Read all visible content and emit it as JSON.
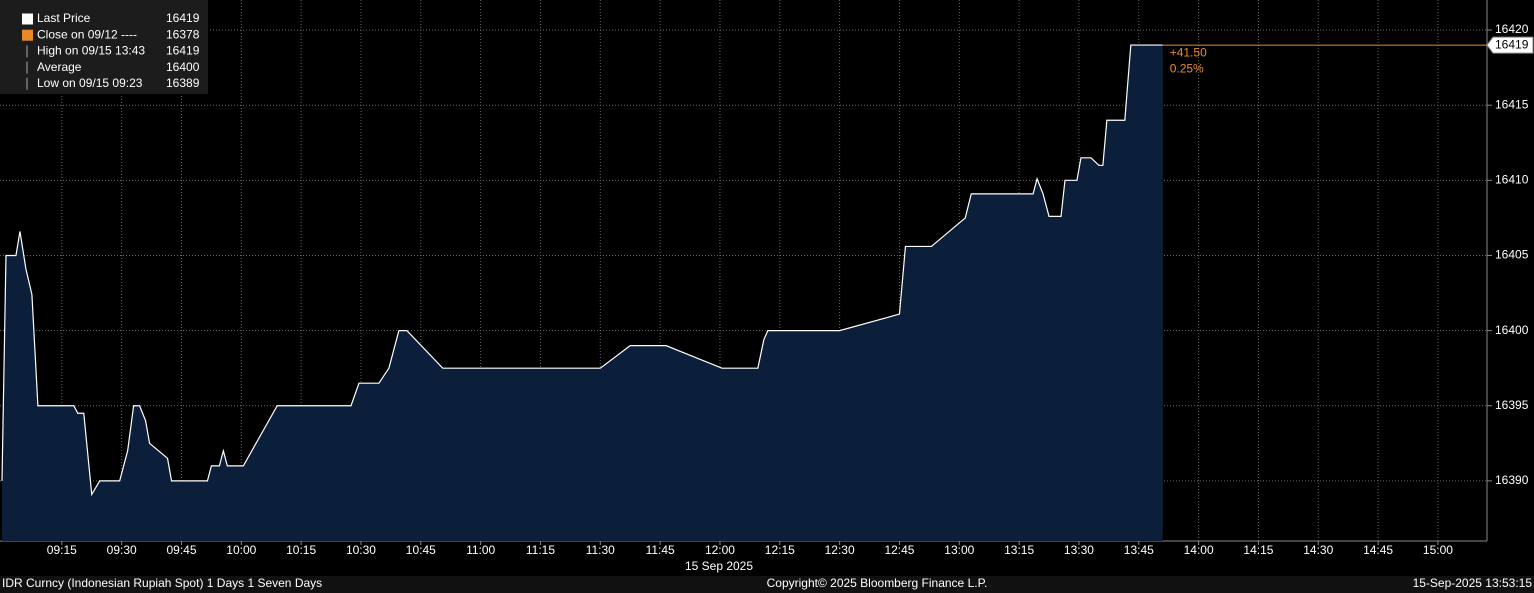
{
  "chart_data": {
    "type": "area",
    "x": [
      540,
      541,
      543.5,
      544.5,
      546,
      547.5,
      548.5,
      549,
      558,
      559,
      560.5,
      562.5,
      564.5,
      569.5,
      571.5,
      573,
      574.5,
      576,
      577,
      581.5,
      582.5,
      591.5,
      592.5,
      594.5,
      595.5,
      596.5,
      600.5,
      609,
      627.5,
      629.5,
      634.5,
      637,
      639.5,
      641.5,
      650.5,
      690,
      697.5,
      706.5,
      720.5,
      729.5,
      731,
      732,
      750,
      765,
      766.5,
      773,
      781.5,
      783,
      798.5,
      799.5,
      801,
      802.5,
      805.5,
      806.5,
      809.5,
      810.5,
      813,
      815,
      816,
      817,
      821.5,
      823,
      831
    ],
    "values": [
      16390,
      16405,
      16405,
      16406.6,
      16404.1,
      16402.4,
      16397.5,
      16395,
      16395,
      16394.5,
      16394.5,
      16389.1,
      16390,
      16390,
      16392,
      16395,
      16395,
      16394,
      16392.5,
      16391.5,
      16390,
      16390,
      16391,
      16391,
      16392,
      16391,
      16391,
      16395,
      16395,
      16396.5,
      16396.5,
      16397.5,
      16400,
      16400,
      16397.5,
      16397.5,
      16399,
      16399,
      16397.5,
      16397.5,
      16399.4,
      16400,
      16400,
      16401.1,
      16405.6,
      16405.6,
      16407.5,
      16409.1,
      16409.1,
      16410.1,
      16409.1,
      16407.6,
      16407.6,
      16410,
      16410,
      16411.5,
      16411.5,
      16411,
      16411,
      16414,
      16414,
      16419,
      16419
    ],
    "line_color": "#ffffff",
    "fill_color": "#0b1f3a",
    "last_color": "#e8892b",
    "xlim": [
      539.5,
      912.3
    ],
    "ylim": [
      16386,
      16422
    ],
    "xticks": [
      {
        "value": 555,
        "label": "09:15"
      },
      {
        "value": 570,
        "label": "09:30"
      },
      {
        "value": 585,
        "label": "09:45"
      },
      {
        "value": 600,
        "label": "10:00"
      },
      {
        "value": 615,
        "label": "10:15"
      },
      {
        "value": 630,
        "label": "10:30"
      },
      {
        "value": 645,
        "label": "10:45"
      },
      {
        "value": 660,
        "label": "11:00"
      },
      {
        "value": 675,
        "label": "11:15"
      },
      {
        "value": 690,
        "label": "11:30"
      },
      {
        "value": 705,
        "label": "11:45"
      },
      {
        "value": 720,
        "label": "12:00"
      },
      {
        "value": 735,
        "label": "12:15"
      },
      {
        "value": 750,
        "label": "12:30"
      },
      {
        "value": 765,
        "label": "12:45"
      },
      {
        "value": 780,
        "label": "13:00"
      },
      {
        "value": 795,
        "label": "13:15"
      },
      {
        "value": 810,
        "label": "13:30"
      },
      {
        "value": 825,
        "label": "13:45"
      },
      {
        "value": 840,
        "label": "14:00"
      },
      {
        "value": 855,
        "label": "14:15"
      },
      {
        "value": 870,
        "label": "14:30"
      },
      {
        "value": 885,
        "label": "14:45"
      },
      {
        "value": 900,
        "label": "15:00"
      }
    ],
    "yticks": [
      16390,
      16395,
      16400,
      16405,
      16410,
      16415,
      16420
    ],
    "grid": true,
    "date_label": "15 Sep 2025",
    "legend": [
      {
        "label": "Last Price",
        "value": 16419
      },
      {
        "label": "Close on 09/12 ----",
        "value": 16378
      },
      {
        "label": "High on 09/15 13:43",
        "value": 16419
      },
      {
        "label": "Average",
        "value": 16400
      },
      {
        "label": "Low on 09/15 09:23",
        "value": 16389
      }
    ],
    "change": "+41.50",
    "change_pct": "0.25%",
    "footer_left": "IDR Curncy (Indonesian Rupiah Spot) 1 Days 1 Seven Days",
    "footer_center": "Copyright© 2025 Bloomberg Finance L.P.",
    "footer_right": "15-Sep-2025 13:53:15"
  }
}
